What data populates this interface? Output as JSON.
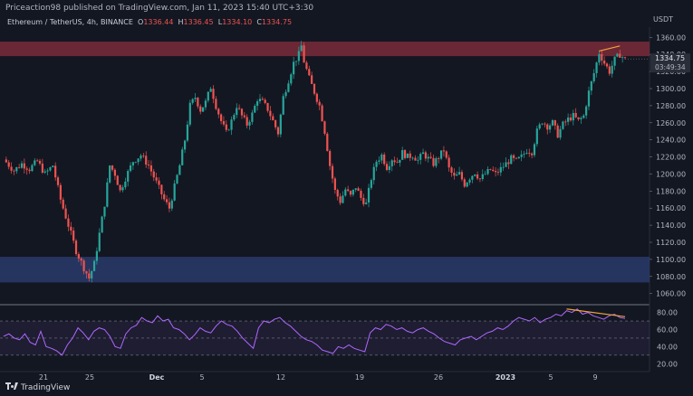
{
  "header": {
    "publisher": "Priceaction98 published on TradingView.com, Jan 11, 2023 15:40 UTC+3:30",
    "symbol": "Ethereum / TetherUS, 4h, BINANCE",
    "o_label": "O",
    "o": "1336.44",
    "h_label": "H",
    "h": "1336.45",
    "l_label": "L",
    "l": "1334.10",
    "c_label": "C",
    "c": "1334.75",
    "currency": "USDT"
  },
  "footer": {
    "brand": "TradingView"
  },
  "chart_data": {
    "type": "candlestick",
    "price_axis": {
      "range": [
        1048,
        1372
      ],
      "ticks": [
        1060,
        1080,
        1100,
        1120,
        1140,
        1160,
        1180,
        1200,
        1220,
        1240,
        1260,
        1280,
        1300,
        1320,
        1340,
        1360
      ]
    },
    "last_price": "1334.75",
    "countdown": "03:49:34",
    "x_ticks": [
      "21",
      "25",
      "Dec",
      "5",
      "12",
      "19",
      "26",
      "2023",
      "5",
      "9"
    ],
    "zones": [
      {
        "name": "resistance",
        "from": 1338,
        "to": 1355,
        "color": "#7a2a38"
      },
      {
        "name": "support",
        "from": 1073,
        "to": 1103,
        "color": "#2a3b6b"
      }
    ],
    "price_path": [
      [
        0,
        1217
      ],
      [
        4,
        1204
      ],
      [
        7,
        1212
      ],
      [
        10,
        1206
      ],
      [
        13,
        1215
      ],
      [
        16,
        1200
      ],
      [
        19,
        1210
      ],
      [
        22,
        1170
      ],
      [
        25,
        1140
      ],
      [
        28,
        1110
      ],
      [
        31,
        1090
      ],
      [
        33,
        1078
      ],
      [
        35,
        1095
      ],
      [
        37,
        1130
      ],
      [
        39,
        1165
      ],
      [
        41,
        1210
      ],
      [
        43,
        1200
      ],
      [
        45,
        1180
      ],
      [
        47,
        1195
      ],
      [
        50,
        1215
      ],
      [
        53,
        1222
      ],
      [
        56,
        1210
      ],
      [
        59,
        1190
      ],
      [
        62,
        1170
      ],
      [
        64,
        1160
      ],
      [
        66,
        1185
      ],
      [
        68,
        1210
      ],
      [
        70,
        1240
      ],
      [
        72,
        1280
      ],
      [
        74,
        1290
      ],
      [
        76,
        1275
      ],
      [
        78,
        1284
      ],
      [
        80,
        1302
      ],
      [
        82,
        1280
      ],
      [
        84,
        1262
      ],
      [
        86,
        1248
      ],
      [
        88,
        1262
      ],
      [
        90,
        1280
      ],
      [
        92,
        1268
      ],
      [
        94,
        1258
      ],
      [
        96,
        1270
      ],
      [
        98,
        1288
      ],
      [
        100,
        1284
      ],
      [
        102,
        1276
      ],
      [
        104,
        1262
      ],
      [
        106,
        1248
      ],
      [
        108,
        1290
      ],
      [
        110,
        1310
      ],
      [
        112,
        1330
      ],
      [
        114,
        1340
      ],
      [
        115,
        1350
      ],
      [
        116,
        1332
      ],
      [
        118,
        1312
      ],
      [
        120,
        1296
      ],
      [
        122,
        1280
      ],
      [
        124,
        1250
      ],
      [
        126,
        1210
      ],
      [
        128,
        1180
      ],
      [
        130,
        1168
      ],
      [
        132,
        1182
      ],
      [
        134,
        1174
      ],
      [
        136,
        1185
      ],
      [
        138,
        1172
      ],
      [
        140,
        1165
      ],
      [
        142,
        1195
      ],
      [
        144,
        1215
      ],
      [
        146,
        1222
      ],
      [
        148,
        1208
      ],
      [
        150,
        1218
      ],
      [
        152,
        1214
      ],
      [
        154,
        1225
      ],
      [
        156,
        1220
      ],
      [
        158,
        1222
      ],
      [
        160,
        1216
      ],
      [
        162,
        1224
      ],
      [
        164,
        1218
      ],
      [
        166,
        1212
      ],
      [
        168,
        1220
      ],
      [
        170,
        1228
      ],
      [
        172,
        1206
      ],
      [
        174,
        1196
      ],
      [
        176,
        1200
      ],
      [
        178,
        1188
      ],
      [
        180,
        1196
      ],
      [
        182,
        1202
      ],
      [
        184,
        1194
      ],
      [
        186,
        1200
      ],
      [
        188,
        1205
      ],
      [
        190,
        1200
      ],
      [
        192,
        1206
      ],
      [
        194,
        1212
      ],
      [
        196,
        1218
      ],
      [
        198,
        1215
      ],
      [
        200,
        1220
      ],
      [
        202,
        1228
      ],
      [
        204,
        1226
      ],
      [
        206,
        1250
      ],
      [
        208,
        1262
      ],
      [
        210,
        1256
      ],
      [
        212,
        1260
      ],
      [
        214,
        1246
      ],
      [
        216,
        1258
      ],
      [
        218,
        1264
      ],
      [
        220,
        1268
      ],
      [
        222,
        1262
      ],
      [
        224,
        1268
      ],
      [
        226,
        1296
      ],
      [
        228,
        1318
      ],
      [
        230,
        1342
      ],
      [
        232,
        1330
      ],
      [
        234,
        1320
      ],
      [
        236,
        1334
      ],
      [
        238,
        1340
      ],
      [
        240,
        1334
      ]
    ],
    "price_x_domain": [
      0,
      240
    ],
    "rsi": {
      "range": [
        15,
        88
      ],
      "ticks": [
        20,
        40,
        60,
        80
      ],
      "upper_band": 70,
      "lower_band": 30,
      "color": "#b067ff",
      "values": [
        52,
        55,
        50,
        48,
        55,
        45,
        42,
        58,
        40,
        38,
        35,
        30,
        42,
        50,
        62,
        56,
        48,
        58,
        62,
        60,
        52,
        40,
        38,
        55,
        62,
        65,
        74,
        70,
        68,
        76,
        70,
        72,
        62,
        60,
        55,
        48,
        54,
        62,
        58,
        56,
        64,
        70,
        66,
        64,
        58,
        50,
        44,
        38,
        62,
        70,
        68,
        72,
        74,
        68,
        64,
        58,
        52,
        48,
        46,
        42,
        36,
        34,
        32,
        40,
        38,
        42,
        38,
        36,
        34,
        56,
        62,
        60,
        66,
        64,
        60,
        62,
        58,
        56,
        60,
        62,
        58,
        55,
        50,
        46,
        44,
        42,
        48,
        50,
        52,
        48,
        52,
        56,
        58,
        62,
        60,
        64,
        70,
        74,
        72,
        70,
        74,
        68,
        72,
        74,
        78,
        76,
        82,
        80,
        84,
        78,
        80,
        76,
        74,
        72,
        76,
        78,
        74,
        73
      ]
    },
    "divergence_lines": [
      {
        "pane": "price",
        "from": [
          230,
          1344
        ],
        "to": [
          238,
          1350
        ],
        "color": "#f0a33a"
      },
      {
        "pane": "rsi",
        "from": [
          106,
          84
        ],
        "to": [
          117,
          75
        ],
        "color": "#f0a33a"
      }
    ]
  }
}
